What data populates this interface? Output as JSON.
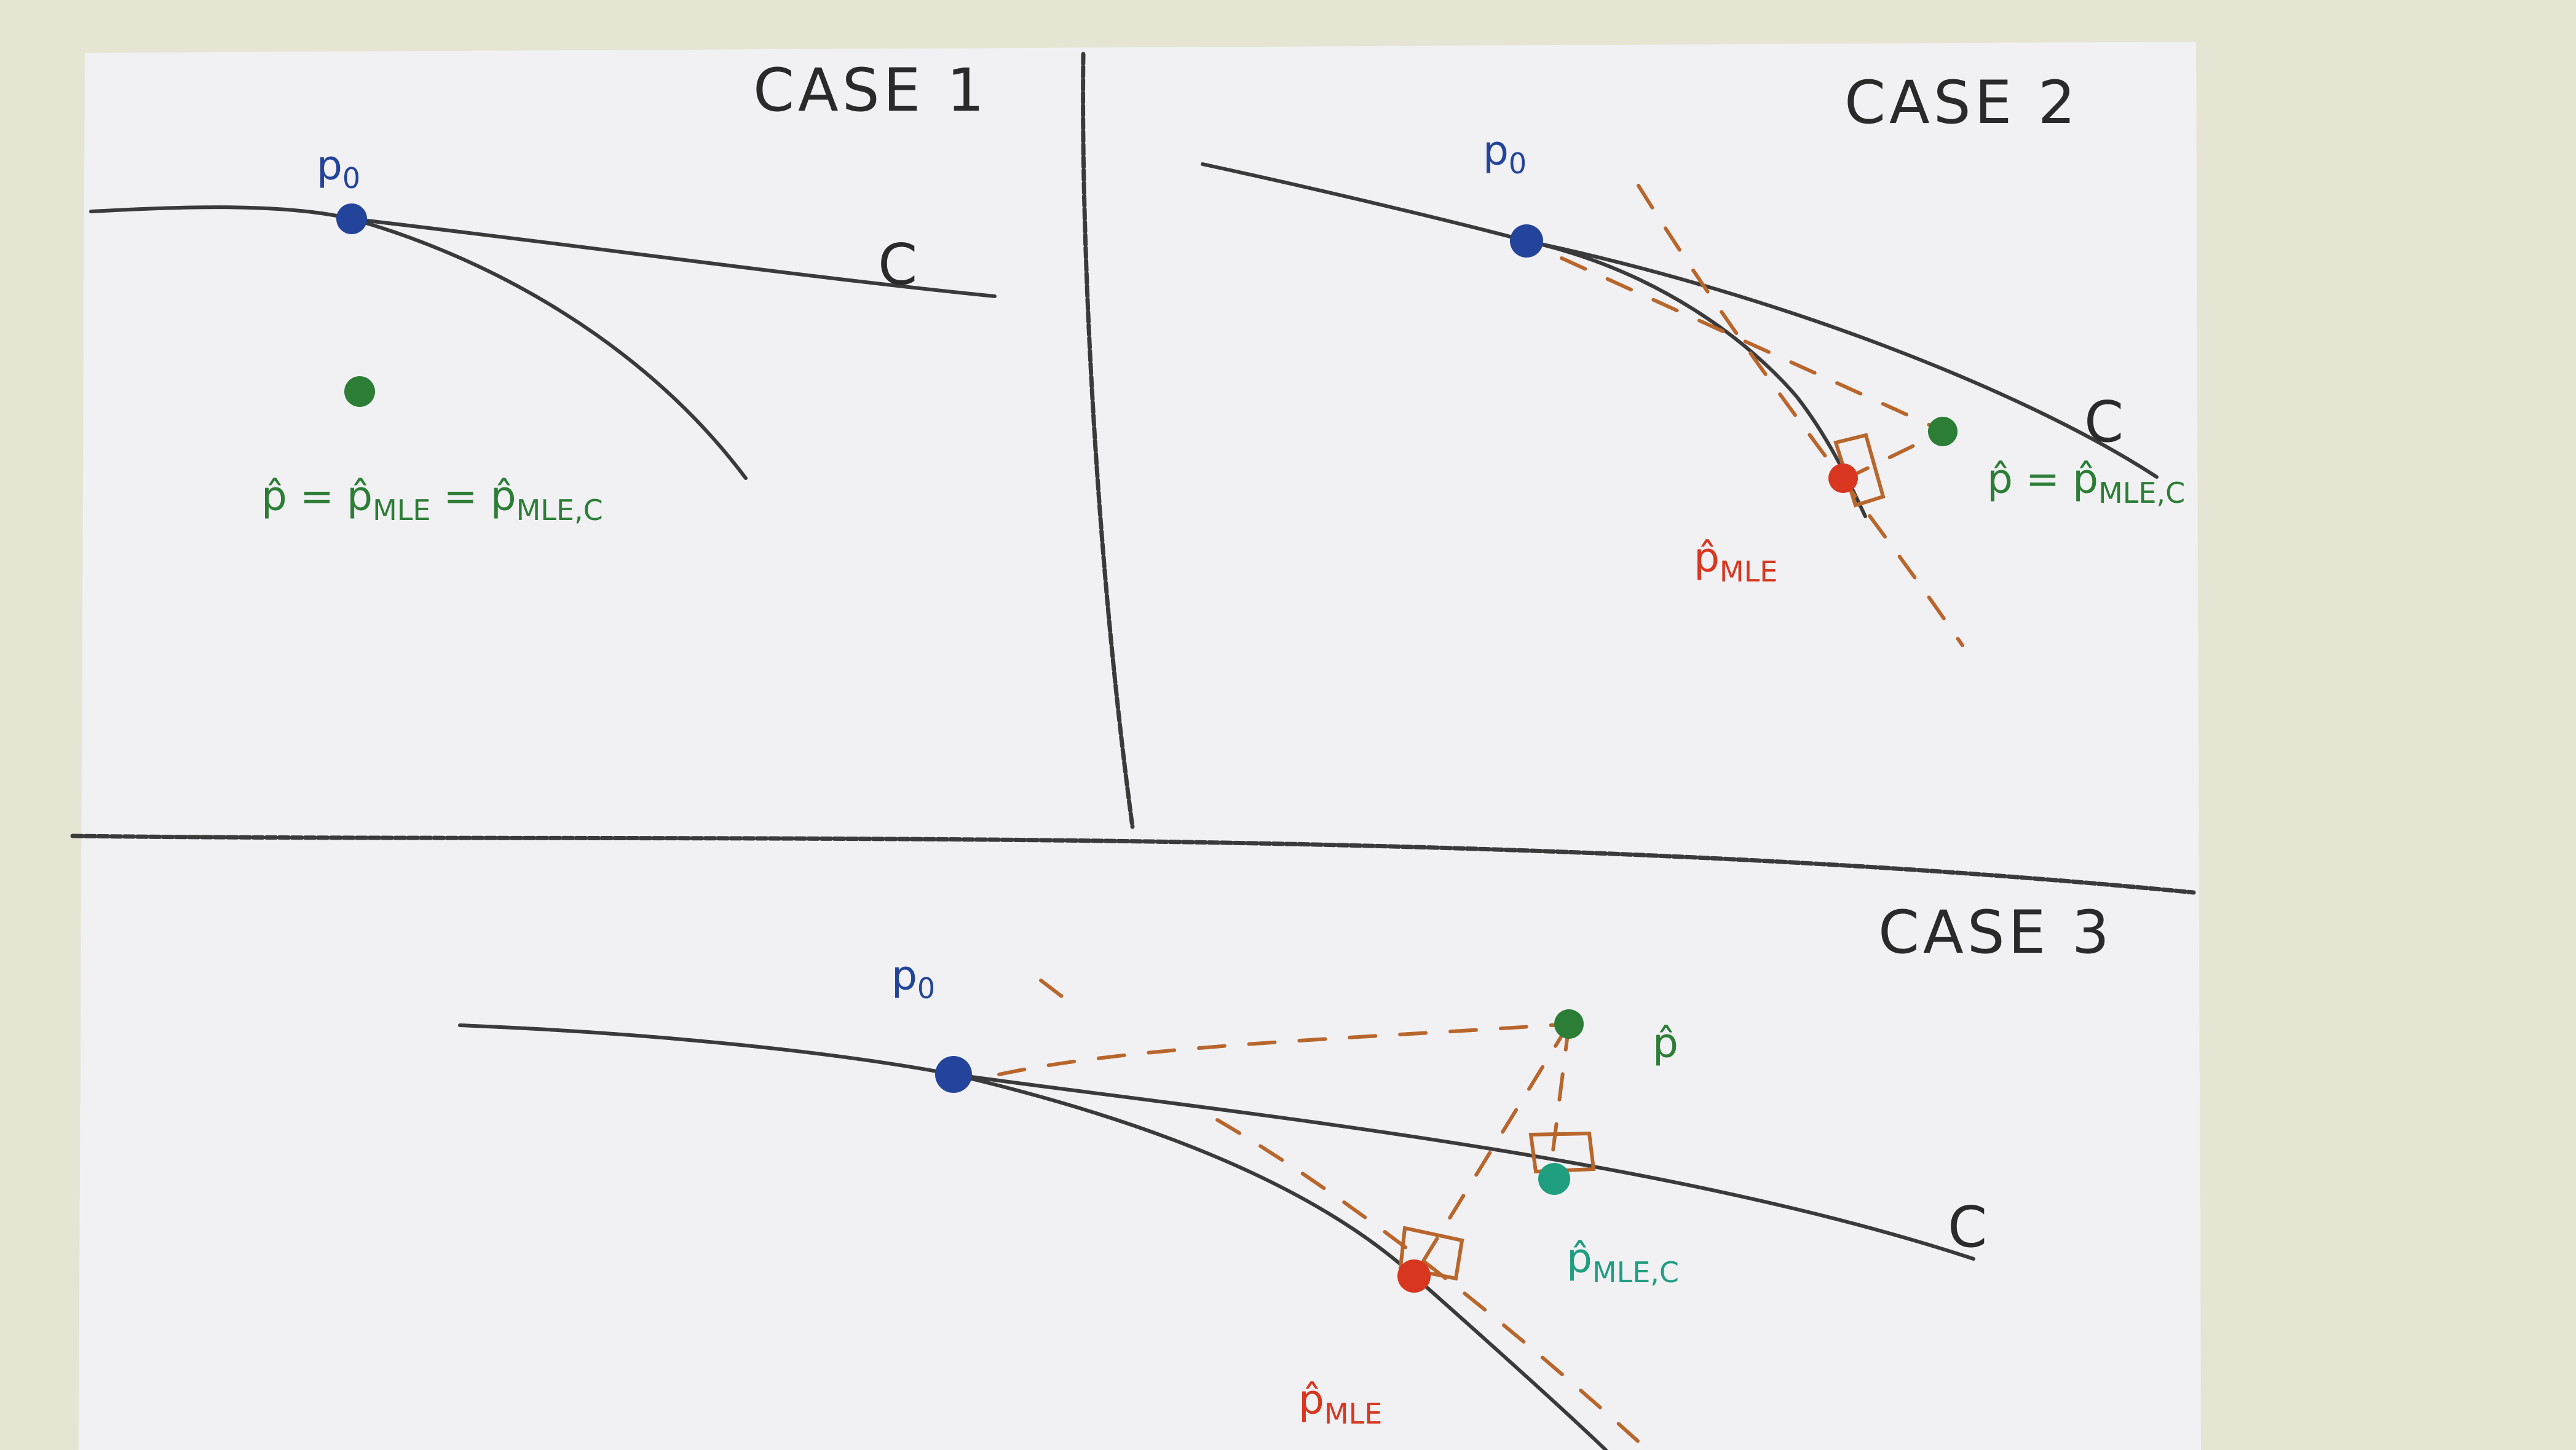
{
  "cases": {
    "case1": {
      "title": "CASE 1",
      "p0": "p",
      "p0_sub": "0",
      "curve": "C",
      "estimate": "p̂ = p̂",
      "estimate_sub1": "MLE",
      "estimate_mid": " = p̂",
      "estimate_sub2": "MLE,C"
    },
    "case2": {
      "title": "CASE 2",
      "p0": "p",
      "p0_sub": "0",
      "curve": "C",
      "mle": "p̂",
      "mle_sub": "MLE",
      "estimate": "p̂ = p̂",
      "estimate_sub": "MLE,C"
    },
    "case3": {
      "title": "CASE 3",
      "p0": "p",
      "p0_sub": "0",
      "curve": "C",
      "phat": "p̂",
      "mle": "p̂",
      "mle_sub": "MLE",
      "mle_c": "p̂",
      "mle_c_sub": "MLE,C"
    }
  },
  "colors": {
    "paper": "#f1f1f4",
    "background": "#e6e5d3",
    "pencil": "#3a3a3a",
    "blue_point": "#23449a",
    "green_point": "#2c7d35",
    "teal_point": "#1f9e80",
    "red_point": "#d8361f",
    "orange_dash": "#b8662c"
  }
}
